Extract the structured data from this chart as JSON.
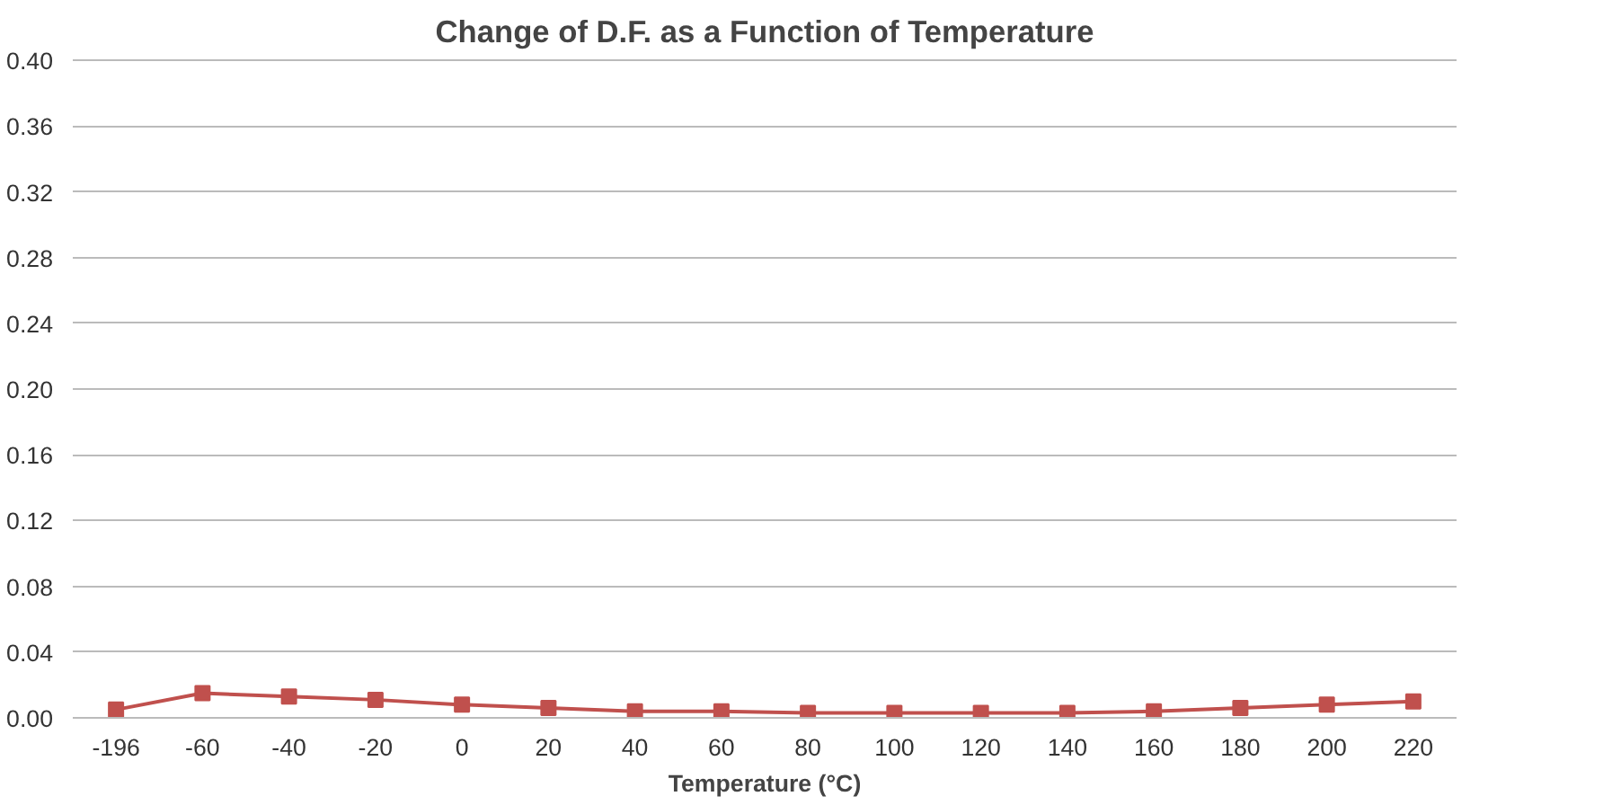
{
  "chart_data": {
    "type": "line",
    "title": "Change of D.F. as a Function of Temperature",
    "xlabel": "Temperature (°C)",
    "categories": [
      "-196",
      "-60",
      "-40",
      "-20",
      "0",
      "20",
      "40",
      "60",
      "80",
      "100",
      "120",
      "140",
      "160",
      "180",
      "200",
      "220"
    ],
    "series": [
      {
        "color": "#c0504d",
        "values": [
          0.005,
          0.015,
          0.013,
          0.011,
          0.008,
          0.006,
          0.004,
          0.004,
          0.003,
          0.003,
          0.003,
          0.003,
          0.004,
          0.006,
          0.008,
          0.01
        ]
      }
    ],
    "ylim": [
      0,
      0.4
    ],
    "yticks": [
      {
        "value": 0,
        "label": "0.00"
      },
      {
        "value": 0.04,
        "label": "0.04"
      },
      {
        "value": 0.08,
        "label": "0.08"
      },
      {
        "value": 0.12,
        "label": "0.12"
      },
      {
        "value": 0.16,
        "label": "0.16"
      },
      {
        "value": 0.2,
        "label": "0.20"
      },
      {
        "value": 0.24,
        "label": "0.24"
      },
      {
        "value": 0.28,
        "label": "0.28"
      },
      {
        "value": 0.32,
        "label": "0.32"
      },
      {
        "value": 0.36,
        "label": "0.36"
      },
      {
        "value": 0.4,
        "label": "0.40"
      }
    ],
    "grid": "y",
    "marker": "square",
    "line_style": "solid"
  }
}
